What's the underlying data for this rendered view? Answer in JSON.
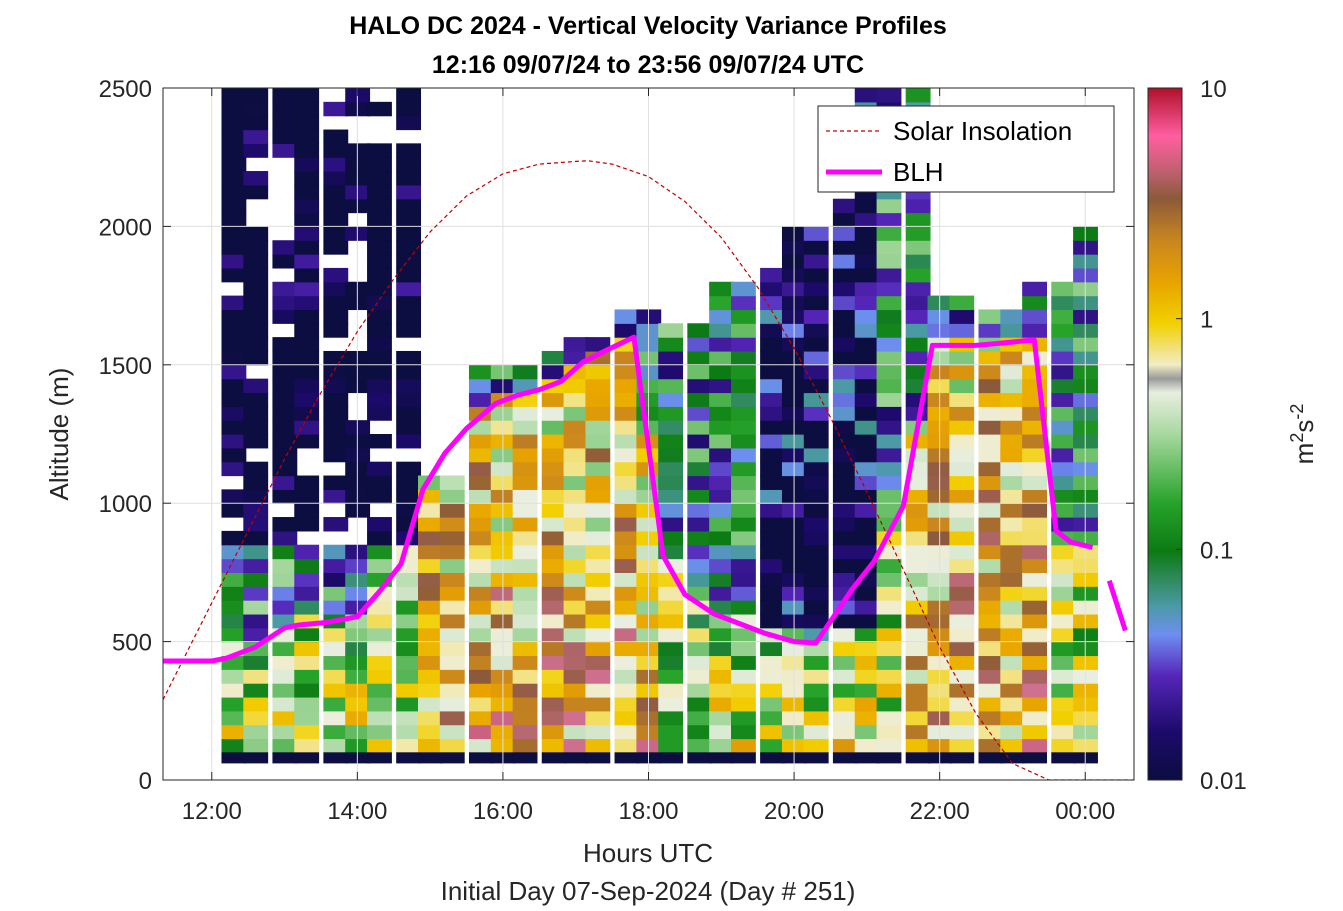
{
  "chart_data": {
    "type": "heatmap",
    "title_line1": "HALO DC 2024 - Vertical Velocity Variance Profiles",
    "title_line2": "12:16 09/07/24 to 23:56 09/07/24  UTC",
    "xlabel": "Hours UTC",
    "xlabel2": "Initial Day 07-Sep-2024 (Day # 251)",
    "ylabel": "Altitude (m)",
    "colorbar_label": "m²s⁻²",
    "colorbar_label_base": "m",
    "colorbar_label_sup1": "2",
    "colorbar_label_mid": "s",
    "colorbar_label_sup2": "-2",
    "xlim": [
      11.33,
      24.67
    ],
    "ylim": [
      0,
      2500
    ],
    "x_ticks": [
      12,
      14,
      16,
      18,
      20,
      22,
      24
    ],
    "x_tick_labels": [
      "12:00",
      "14:00",
      "16:00",
      "18:00",
      "20:00",
      "22:00",
      "00:00"
    ],
    "y_ticks": [
      0,
      500,
      1000,
      1500,
      2000,
      2500
    ],
    "y_tick_labels": [
      "0",
      "500",
      "1000",
      "1500",
      "2000",
      "2500"
    ],
    "colorbar_scale": "log",
    "colorbar_range": [
      0.01,
      10
    ],
    "colorbar_ticks": [
      0.01,
      0.1,
      1,
      10
    ],
    "colorbar_tick_labels": [
      "0.01",
      "0.1",
      "1",
      "10"
    ],
    "grid": true,
    "legend_position": "top-right",
    "series": [
      {
        "name": "Solar Insolation",
        "style": "dashed",
        "color": "#c00000",
        "x": [
          11.33,
          12.0,
          12.5,
          13.0,
          13.5,
          14.0,
          14.5,
          15.0,
          15.5,
          16.0,
          16.5,
          17.0,
          17.17,
          17.5,
          18.0,
          18.5,
          19.0,
          19.5,
          20.0,
          20.5,
          21.0,
          21.5,
          22.0,
          22.5,
          23.0,
          23.5,
          24.0,
          24.67
        ],
        "y": [
          290,
          640,
          900,
          1160,
          1400,
          1620,
          1810,
          1980,
          2110,
          2190,
          2225,
          2235,
          2237,
          2225,
          2180,
          2090,
          1960,
          1780,
          1560,
          1310,
          1040,
          760,
          480,
          240,
          60,
          0,
          0,
          0
        ]
      },
      {
        "name": "BLH",
        "style": "solid",
        "color": "#ff00ff",
        "x": [
          11.33,
          11.5,
          12.0,
          12.2,
          12.6,
          13.0,
          13.2,
          13.6,
          14.0,
          14.3,
          14.6,
          14.9,
          15.2,
          15.5,
          15.9,
          16.2,
          16.5,
          16.8,
          17.1,
          17.4,
          17.8,
          18.2,
          18.5,
          18.9,
          19.3,
          19.6,
          20.0,
          20.3,
          20.8,
          21.1,
          21.5,
          21.9,
          22.2,
          22.5,
          22.9,
          23.3,
          23.6,
          23.8,
          24.1
        ],
        "y": [
          430,
          430,
          430,
          440,
          480,
          550,
          560,
          570,
          590,
          680,
          780,
          1050,
          1180,
          1270,
          1360,
          1390,
          1410,
          1440,
          1510,
          1550,
          1600,
          810,
          670,
          600,
          560,
          530,
          500,
          495,
          690,
          790,
          990,
          1570,
          1570,
          1570,
          1580,
          1590,
          900,
          860,
          840
        ]
      }
    ],
    "blh_extra_segment": {
      "x": [
        24.33,
        24.55
      ],
      "y": [
        720,
        540
      ]
    },
    "legend": [
      {
        "label": "Solar Insolation",
        "style": "dashed",
        "color": "#c00000"
      },
      {
        "label": "BLH",
        "style": "solid",
        "color": "#ff00ff"
      }
    ],
    "heatmap": {
      "note": "log10 variance per column (altitude bins of 50 m, 25 m to 2475 m); null = no data",
      "time_hours": [
        12.3,
        12.6,
        13.0,
        13.3,
        13.7,
        14.0,
        14.3,
        14.7,
        15.0,
        15.3,
        15.7,
        16.0,
        16.3,
        16.7,
        17.0,
        17.3,
        17.7,
        18.0,
        18.3,
        18.7,
        19.0,
        19.3,
        19.7,
        20.0,
        20.3,
        20.7,
        21.0,
        21.3,
        21.7,
        22.0,
        22.3,
        22.7,
        23.0,
        23.3,
        23.7,
        24.0
      ],
      "top_altitude_m": [
        2500,
        2500,
        2500,
        2500,
        2500,
        2500,
        2500,
        2500,
        1100,
        1100,
        1500,
        1500,
        1500,
        1550,
        1600,
        1600,
        1700,
        1700,
        1650,
        1650,
        1800,
        1800,
        1850,
        2000,
        2000,
        2100,
        2500,
        2500,
        2500,
        1750,
        1750,
        1700,
        1700,
        1800,
        1800,
        2000
      ],
      "bottom_altitude_m": 100
    }
  }
}
